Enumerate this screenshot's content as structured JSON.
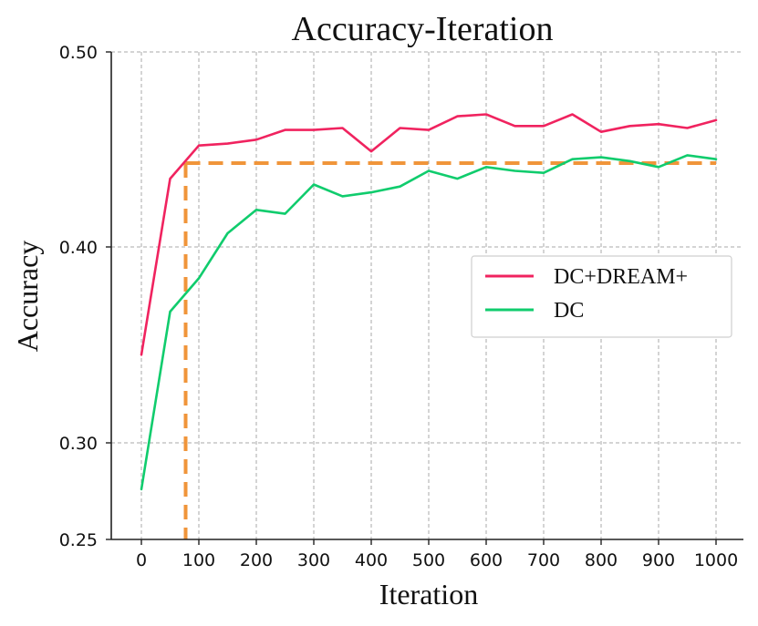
{
  "chart_data": {
    "type": "line",
    "title": "Accuracy-Iteration",
    "xlabel": "Iteration",
    "ylabel": "Accuracy",
    "xlim": [
      -55,
      1030
    ],
    "ylim": [
      0.25,
      0.5
    ],
    "x_ticks": [
      0,
      100,
      200,
      300,
      400,
      500,
      600,
      700,
      800,
      900,
      1000
    ],
    "x_tick_labels": [
      "0",
      "100",
      "200",
      "300",
      "400",
      "500",
      "600",
      "700",
      "800",
      "900",
      "1000"
    ],
    "y_ticks": [
      0.25,
      0.3,
      0.4,
      0.5
    ],
    "y_tick_labels": [
      "0.25",
      "0.30",
      "0.40",
      "0.50"
    ],
    "grid": true,
    "legend_position": "center-right",
    "x": [
      0,
      50,
      100,
      150,
      200,
      250,
      300,
      350,
      400,
      450,
      500,
      550,
      600,
      650,
      700,
      750,
      800,
      850,
      900,
      950,
      1000
    ],
    "series": [
      {
        "name": "DC+DREAM+",
        "color": "#f0235f",
        "values": [
          0.345,
          0.435,
          0.452,
          0.453,
          0.455,
          0.46,
          0.46,
          0.461,
          0.449,
          0.461,
          0.46,
          0.467,
          0.468,
          0.462,
          0.462,
          0.468,
          0.459,
          0.462,
          0.463,
          0.461,
          0.465
        ]
      },
      {
        "name": "DC",
        "color": "#10cc6d",
        "values": [
          0.276,
          0.367,
          0.384,
          0.407,
          0.419,
          0.417,
          0.432,
          0.426,
          0.428,
          0.431,
          0.439,
          0.435,
          0.441,
          0.439,
          0.438,
          0.445,
          0.446,
          0.444,
          0.441,
          0.447,
          0.445
        ]
      }
    ],
    "annotations": [
      {
        "type": "dashed-reference-lines",
        "color": "#f0953a",
        "x": 77,
        "y": 0.443
      }
    ]
  }
}
